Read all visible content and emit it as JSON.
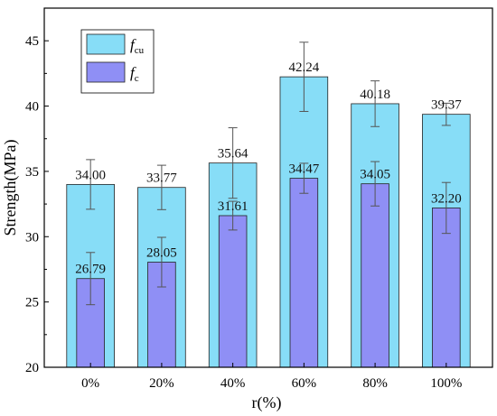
{
  "chart_data": {
    "type": "bar",
    "categories": [
      "0%",
      "20%",
      "40%",
      "60%",
      "80%",
      "100%"
    ],
    "xlabel": "r(%)",
    "ylabel": "Strength(MPa)",
    "ylim": [
      20,
      47.5
    ],
    "yticks": [
      20,
      25,
      30,
      35,
      40,
      45
    ],
    "grid": false,
    "legend_position": "top-left",
    "series": [
      {
        "name": "fcu",
        "legend_main": "f",
        "legend_sub": "cu",
        "color": "#87ddf7",
        "values": [
          34.0,
          33.77,
          35.64,
          42.24,
          40.18,
          39.37
        ],
        "labels": [
          "34.00",
          "33.77",
          "35.64",
          "42.24",
          "40.18",
          "39.37"
        ],
        "errors": [
          1.9,
          1.7,
          2.7,
          2.65,
          1.75,
          0.85
        ]
      },
      {
        "name": "fc",
        "legend_main": "f",
        "legend_sub": "c",
        "color": "#8f8ff5",
        "values": [
          26.79,
          28.05,
          31.61,
          34.47,
          34.05,
          32.2
        ],
        "labels": [
          "26.79",
          "28.05",
          "31.61",
          "34.47",
          "34.05",
          "32.20"
        ],
        "errors": [
          2.0,
          1.9,
          1.1,
          1.15,
          1.7,
          1.95
        ]
      }
    ]
  }
}
